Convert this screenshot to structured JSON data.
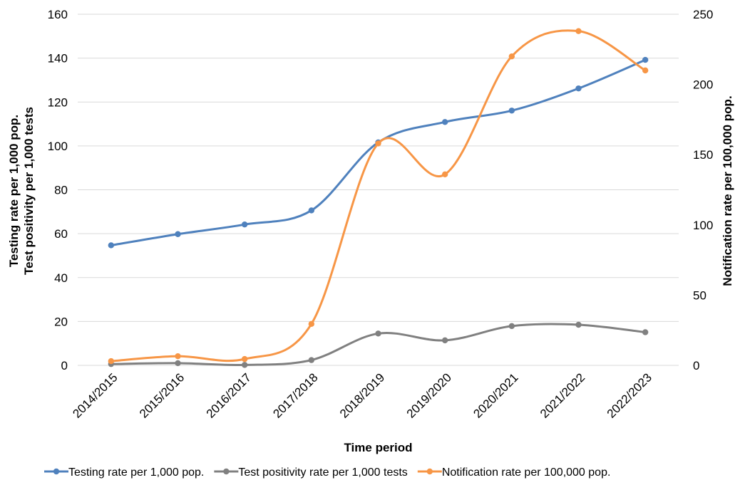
{
  "chart_data": {
    "type": "line",
    "categories": [
      "2014/2015",
      "2015/2016",
      "2016/2017",
      "2017/2018",
      "2018/2019",
      "2019/2020",
      "2020/2021",
      "2021/2022",
      "2022/2023"
    ],
    "xlabel": "Time period",
    "ylabel_left_line1": "Testing rate per 1,000 pop.",
    "ylabel_left_line2": "Test positivity per 1,000 tests",
    "ylabel_right": "Notification rate per 100,000 pop.",
    "ylim_left": [
      0,
      160
    ],
    "yticks_left": [
      0,
      20,
      40,
      60,
      80,
      100,
      120,
      140,
      160
    ],
    "ylim_right": [
      0,
      250
    ],
    "yticks_right": [
      0,
      50,
      100,
      150,
      200,
      250
    ],
    "grid": true,
    "legend_position": "bottom",
    "series": [
      {
        "name": "Testing rate per 1,000 pop.",
        "axis": "left",
        "color": "#4f81bd",
        "values": [
          54.7,
          59.8,
          64.2,
          70.6,
          101.6,
          110.9,
          116.1,
          126.2,
          139.2
        ]
      },
      {
        "name": "Test positivity rate per 1,000 tests",
        "axis": "left",
        "color": "#808080",
        "values": [
          0.6,
          1.0,
          0.2,
          2.4,
          14.5,
          11.4,
          17.9,
          18.5,
          15.1
        ]
      },
      {
        "name": "Notification rate per 100,000 pop.",
        "axis": "right",
        "color": "#f79646",
        "values": [
          3,
          6.5,
          4.5,
          29.5,
          158,
          136,
          220,
          238,
          210
        ]
      }
    ]
  }
}
